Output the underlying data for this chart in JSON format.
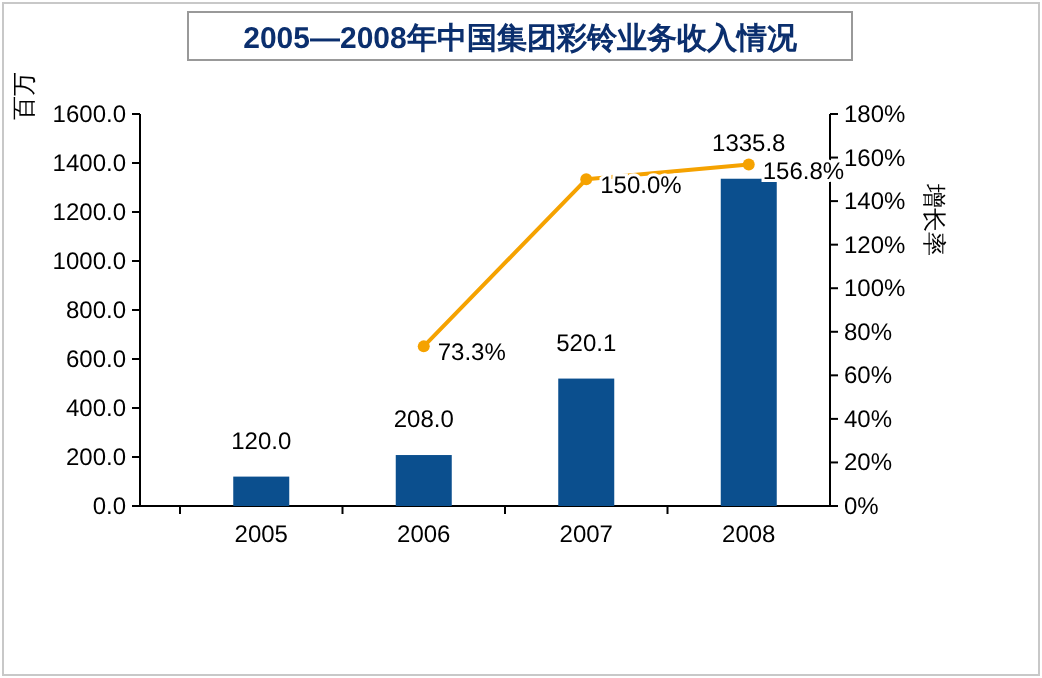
{
  "chart_data": {
    "type": "bar",
    "title": "2005—2008年中国集团彩铃业务收入情况",
    "ylabel": "百万",
    "y2label": "增长率",
    "categories": [
      "2005",
      "2006",
      "2007",
      "2008"
    ],
    "series": [
      {
        "color": "#0b4f8e",
        "values": [
          120.0,
          208.0,
          520.1,
          1335.8
        ],
        "value_labels": [
          "120.0",
          "208.0",
          "520.1",
          "1335.8"
        ]
      },
      {
        "type": "line",
        "axis": "y2",
        "color": "#f5a200",
        "values": [
          null,
          73.3,
          150.0,
          156.8
        ],
        "value_labels": [
          null,
          "73.3%",
          "150.0%",
          "156.8%"
        ]
      }
    ],
    "ylim": [
      0,
      1600
    ],
    "yticks": [
      {
        "value": 0,
        "label": "0.0"
      },
      {
        "value": 200,
        "label": "200.0"
      },
      {
        "value": 400,
        "label": "400.0"
      },
      {
        "value": 600,
        "label": "600.0"
      },
      {
        "value": 800,
        "label": "800.0"
      },
      {
        "value": 1000,
        "label": "1000.0"
      },
      {
        "value": 1200,
        "label": "1200.0"
      },
      {
        "value": 1400,
        "label": "1400.0"
      },
      {
        "value": 1600,
        "label": "1600.0"
      }
    ],
    "y2lim": [
      0,
      180
    ],
    "y2ticks": [
      {
        "value": 0,
        "label": "0%"
      },
      {
        "value": 20,
        "label": "20%"
      },
      {
        "value": 40,
        "label": "40%"
      },
      {
        "value": 60,
        "label": "60%"
      },
      {
        "value": 80,
        "label": "80%"
      },
      {
        "value": 100,
        "label": "100%"
      },
      {
        "value": 120,
        "label": "120%"
      },
      {
        "value": 140,
        "label": "140%"
      },
      {
        "value": 160,
        "label": "160%"
      },
      {
        "value": 180,
        "label": "180%"
      }
    ],
    "marker": "circle",
    "line_style": "solid"
  }
}
